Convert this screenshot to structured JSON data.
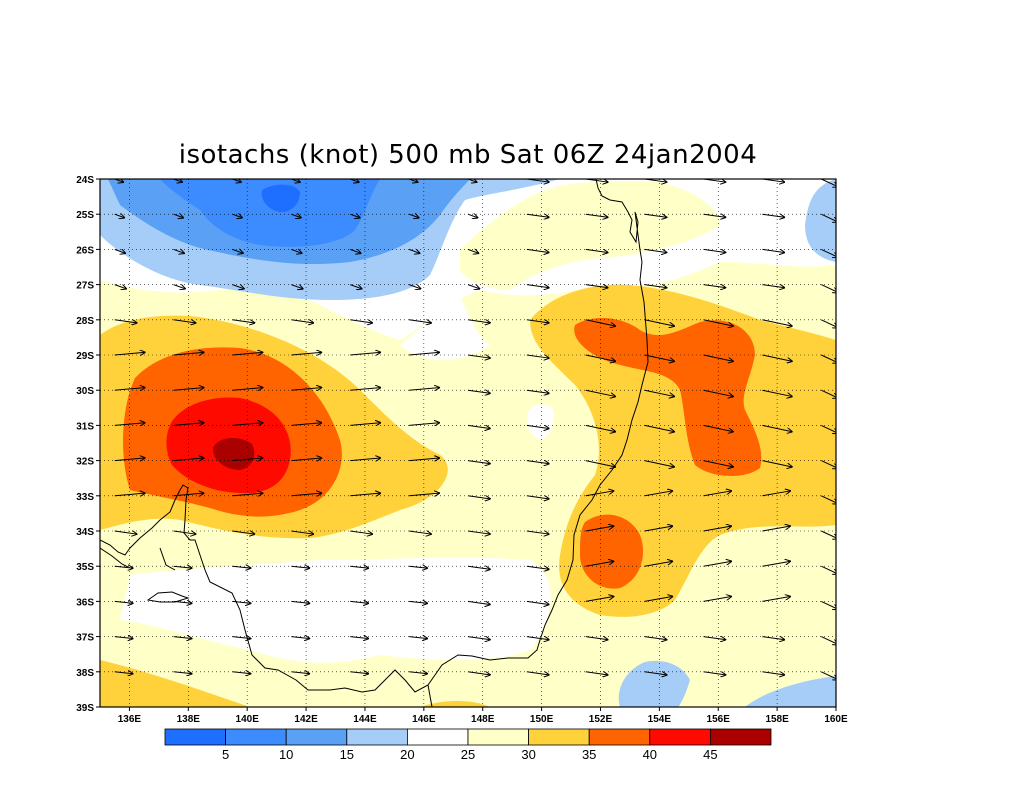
{
  "title": "isotachs (knot) 500 mb Sat 06Z 24jan2004",
  "chart_data": {
    "type": "heatmap",
    "title": "isotachs (knot) 500 mb Sat 06Z 24jan2004",
    "variable": "isotachs",
    "units": "knot",
    "level": "500 mb",
    "valid_time": "Sat 06Z 24jan2004",
    "lon_range": [
      135,
      160
    ],
    "lat_range": [
      -39,
      -24
    ],
    "lon_ticks": [
      "136E",
      "138E",
      "140E",
      "142E",
      "144E",
      "146E",
      "148E",
      "150E",
      "152E",
      "154E",
      "156E",
      "158E",
      "160E"
    ],
    "lat_ticks": [
      "24S",
      "25S",
      "26S",
      "27S",
      "28S",
      "29S",
      "30S",
      "31S",
      "32S",
      "33S",
      "34S",
      "35S",
      "36S",
      "37S",
      "38S",
      "39S"
    ],
    "grid": true,
    "grid_style": "dotted",
    "contour_levels": [
      5,
      10,
      15,
      20,
      25,
      30,
      35,
      40,
      45
    ],
    "colorbar_labels": [
      "5",
      "10",
      "15",
      "20",
      "25",
      "30",
      "35",
      "40",
      "45"
    ],
    "colorbar_colors": [
      "#1e6eff",
      "#3c8cff",
      "#5aa0f5",
      "#a5cdf8",
      "#ffffff",
      "#ffffc8",
      "#ffd23c",
      "#ff6400",
      "#ff0a00",
      "#aa0000"
    ],
    "features": [
      {
        "type": "maximum",
        "lon": 140,
        "lat": -31.8,
        "speed_range": [
          45,
          50
        ]
      },
      {
        "type": "maximum",
        "lon": 152.5,
        "lat": -28.8,
        "speed_range": [
          35,
          40
        ]
      },
      {
        "type": "maximum",
        "lon": 155.5,
        "lat": -31,
        "speed_range": [
          35,
          40
        ]
      },
      {
        "type": "maximum",
        "lon": 152.5,
        "lat": -34.5,
        "speed_range": [
          35,
          40
        ]
      },
      {
        "type": "minimum",
        "lon": 141,
        "lat": -24.5,
        "speed_range": [
          0,
          5
        ]
      },
      {
        "type": "minimum",
        "lon": 150,
        "lat": -30.8,
        "speed_range": [
          20,
          25
        ]
      }
    ],
    "vectors": "wind arrows every 1 degree lat / 2 degrees lon, predominantly westerly"
  }
}
